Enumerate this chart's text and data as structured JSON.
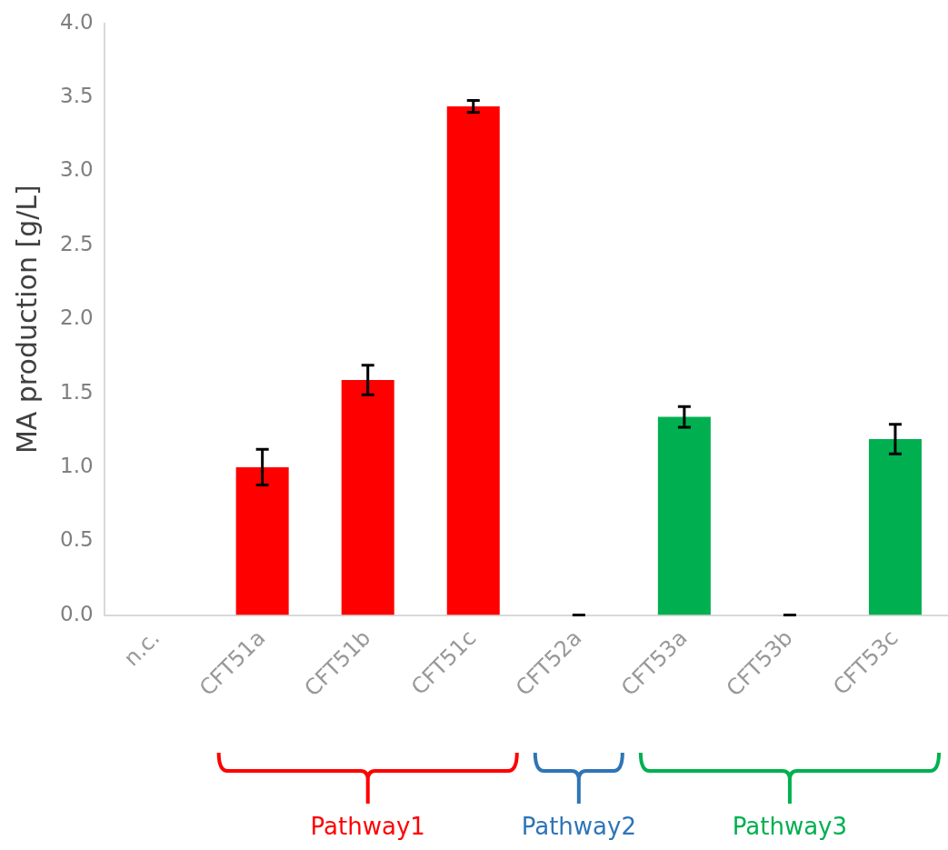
{
  "chart_data": {
    "type": "bar",
    "ylabel": "MA production [g/L]",
    "categories": [
      "n.c.",
      "CFT51a",
      "CFT51b",
      "CFT51c",
      "CFT52a",
      "CFT53a",
      "CFT53b",
      "CFT53c"
    ],
    "values": [
      0,
      1.0,
      1.59,
      3.44,
      0,
      1.34,
      0,
      1.19
    ],
    "errors": [
      null,
      0.12,
      0.1,
      0.04,
      0,
      0.07,
      0,
      0.1
    ],
    "colors": [
      "#ff0000",
      "#ff0000",
      "#ff0000",
      "#ff0000",
      "#000000",
      "#00b050",
      "#000000",
      "#00b050"
    ],
    "ylim": [
      0,
      4
    ],
    "yticks": [
      {
        "value": 0,
        "label": "0.0"
      },
      {
        "value": 0.5,
        "label": "0.5"
      },
      {
        "value": 1,
        "label": "1.0"
      },
      {
        "value": 1.5,
        "label": "1.5"
      },
      {
        "value": 2,
        "label": "2.0"
      },
      {
        "value": 2.5,
        "label": "2.5"
      },
      {
        "value": 3,
        "label": "3.0"
      },
      {
        "value": 3.5,
        "label": "3.5"
      },
      {
        "value": 4,
        "label": "4.0"
      }
    ],
    "grid": false,
    "legend": false,
    "annotations": [
      "Pathway1",
      "Pathway2",
      "Pathway3"
    ]
  }
}
